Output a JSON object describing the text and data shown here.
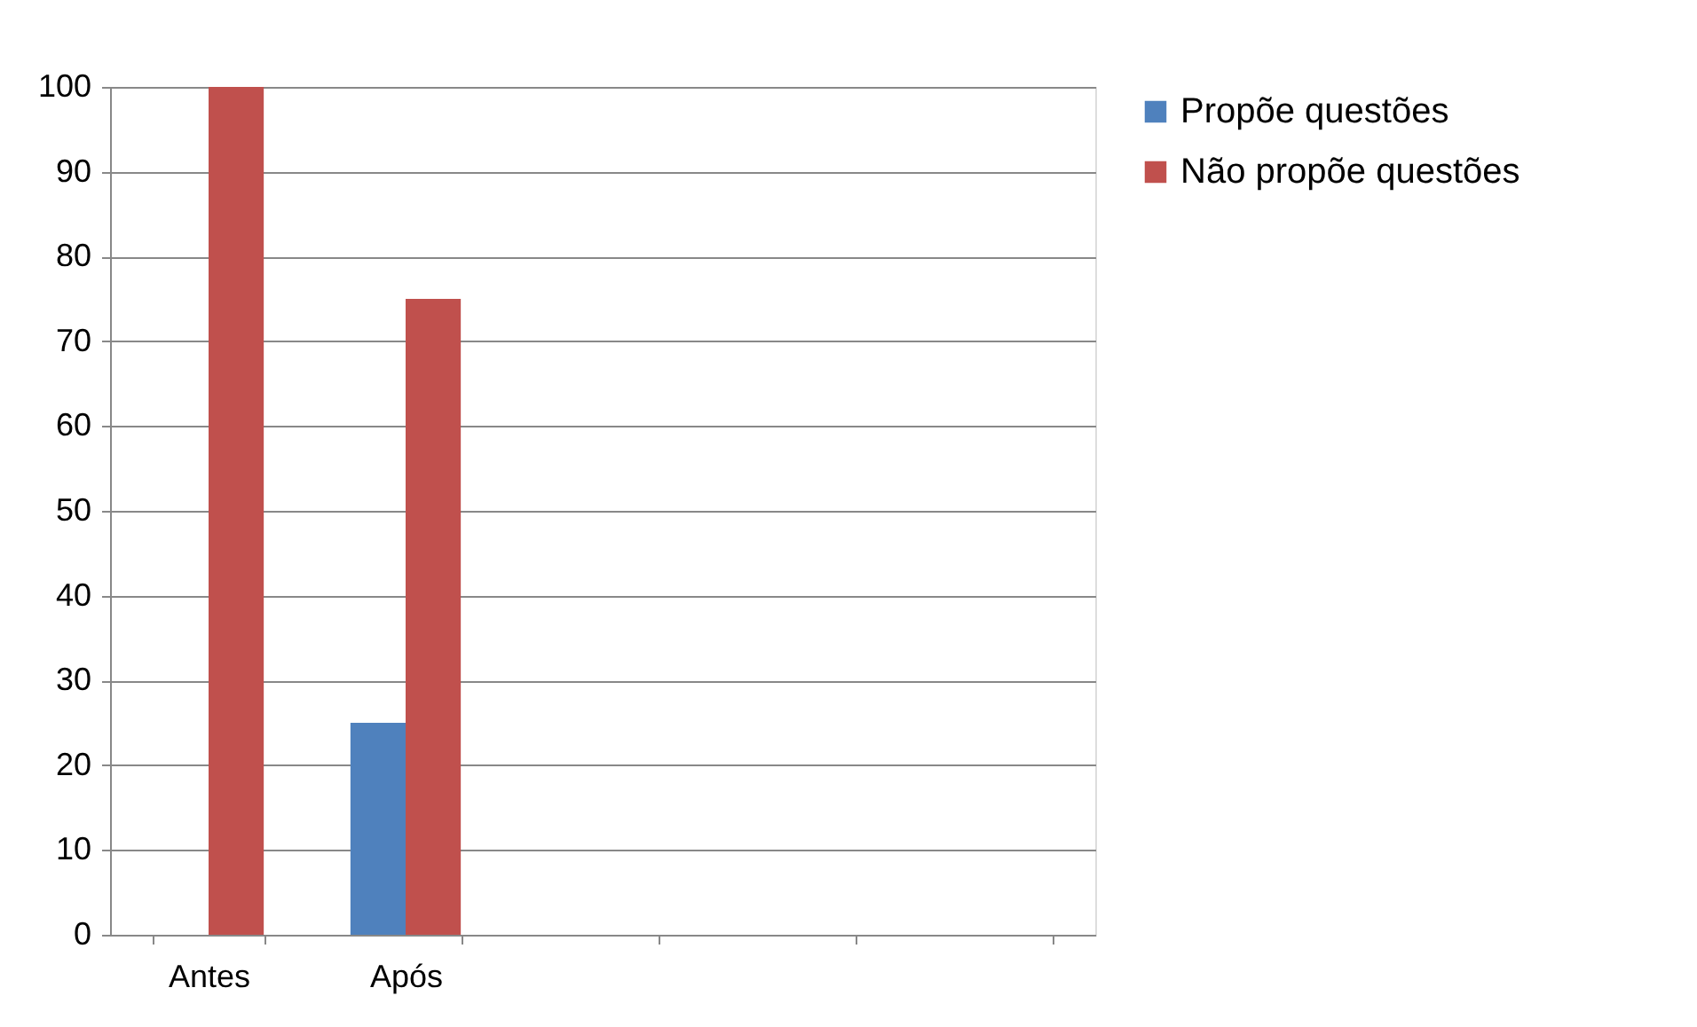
{
  "chart_data": {
    "type": "bar",
    "categories": [
      "Antes",
      "Após",
      null,
      null,
      null
    ],
    "series": [
      {
        "name": "Propõe questões",
        "color": "#4f81bd",
        "values": [
          0,
          25,
          null,
          null,
          null
        ]
      },
      {
        "name": "Não propõe questões",
        "color": "#c0504d",
        "values": [
          100,
          75,
          null,
          null,
          null
        ]
      }
    ],
    "ylim": [
      0,
      100
    ],
    "yticks": [
      0,
      10,
      20,
      30,
      40,
      50,
      60,
      70,
      80,
      90,
      100
    ],
    "grid": "y",
    "legend": "right"
  }
}
